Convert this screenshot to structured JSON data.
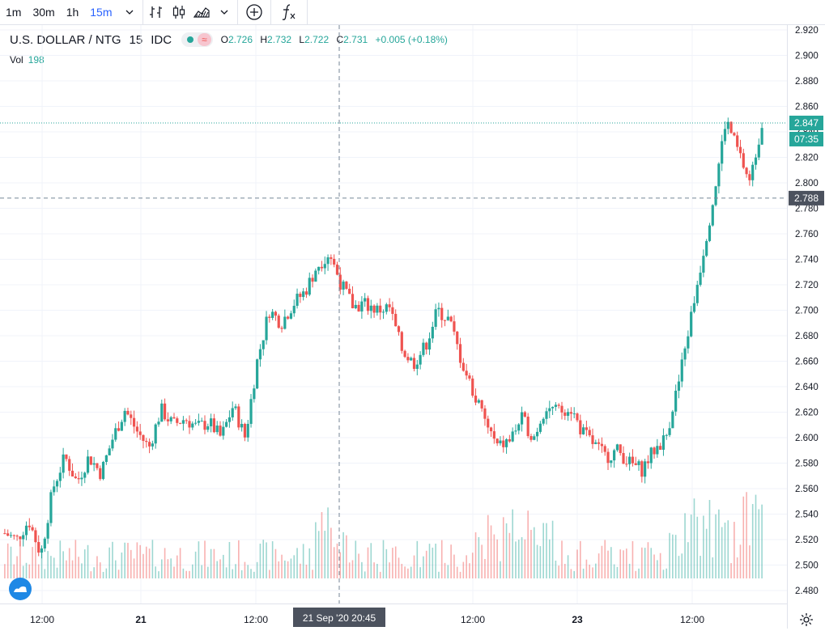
{
  "toolbar": {
    "intervals": [
      "1m",
      "30m",
      "1h",
      "15m"
    ],
    "active_interval": "15m",
    "icons": [
      "chevron-down-icon",
      "bar-chart-icon",
      "candlestick-icon",
      "area-chart-icon",
      "chevron-down-icon",
      "add-circle-icon",
      "function-icon"
    ]
  },
  "legend": {
    "symbol": "U.S. DOLLAR / NTG",
    "interval": "15",
    "exchange": "IDC",
    "open_label": "O",
    "open": "2.726",
    "high_label": "H",
    "high": "2.732",
    "low_label": "L",
    "low": "2.722",
    "close_label": "C",
    "close": "2.731",
    "change": "+0.005 (+0.18%)",
    "wave_symbol": "≈"
  },
  "volume": {
    "label": "Vol",
    "value": "198"
  },
  "colors": {
    "up": "#26a69a",
    "down": "#ef5350",
    "grid": "#f0f3fa",
    "crosshair": "#758696",
    "accent": "#2962ff"
  },
  "chart_data": {
    "type": "candlestick",
    "price_axis": {
      "min": 2.48,
      "max": 2.92,
      "step": 0.02,
      "ticks": [
        "2.920",
        "2.900",
        "2.880",
        "2.860",
        "2.840",
        "2.820",
        "2.800",
        "2.780",
        "2.760",
        "2.740",
        "2.720",
        "2.700",
        "2.680",
        "2.660",
        "2.640",
        "2.620",
        "2.600",
        "2.580",
        "2.560",
        "2.540",
        "2.520",
        "2.500",
        "2.480"
      ]
    },
    "time_axis": {
      "ticks": [
        "12:00",
        "21",
        "12:00",
        "12:00",
        "23",
        "12:00"
      ]
    },
    "last_price": {
      "value": "2.847",
      "countdown": "07:35"
    },
    "crosshair": {
      "price": "2.788",
      "time": "21 Sep '20  20:45"
    },
    "path": [
      [
        "20 Sep '20 09:00",
        2.525
      ],
      [
        "20 Sep '20 10:00",
        2.52
      ],
      [
        "20 Sep '20 11:00",
        2.535
      ],
      [
        "20 Sep '20 12:00",
        2.508
      ],
      [
        "20 Sep '20 13:00",
        2.56
      ],
      [
        "20 Sep '20 14:00",
        2.585
      ],
      [
        "20 Sep '20 15:00",
        2.565
      ],
      [
        "20 Sep '20 16:00",
        2.585
      ],
      [
        "20 Sep '20 17:00",
        2.572
      ],
      [
        "20 Sep '20 18:00",
        2.6
      ],
      [
        "20 Sep '20 19:00",
        2.622
      ],
      [
        "20 Sep '20 20:00",
        2.605
      ],
      [
        "20 Sep '20 21:00",
        2.592
      ],
      [
        "20 Sep '20 23:00",
        2.622
      ],
      [
        "21 Sep '20 01:00",
        2.61
      ],
      [
        "21 Sep '20 04:00",
        2.615
      ],
      [
        "21 Sep '20 07:00",
        2.608
      ],
      [
        "21 Sep '20 10:00",
        2.612
      ],
      [
        "21 Sep '20 12:00",
        2.6
      ],
      [
        "21 Sep '20 14:00",
        2.625
      ],
      [
        "21 Sep '20 15:00",
        2.6
      ],
      [
        "21 Sep '20 16:00",
        2.66
      ],
      [
        "21 Sep '20 17:00",
        2.7
      ],
      [
        "21 Sep '20 18:00",
        2.69
      ],
      [
        "21 Sep '20 19:00",
        2.705
      ],
      [
        "21 Sep '20 20:00",
        2.715
      ],
      [
        "21 Sep '20 21:00",
        2.735
      ],
      [
        "21 Sep '20 22:00",
        2.745
      ],
      [
        "21 Sep '20 23:00",
        2.72
      ],
      [
        "22 Sep '20 00:00",
        2.703
      ],
      [
        "22 Sep '20 02:00",
        2.705
      ],
      [
        "22 Sep '20 05:00",
        2.7
      ],
      [
        "22 Sep '20 08:00",
        2.702
      ],
      [
        "22 Sep '20 09:00",
        2.67
      ],
      [
        "22 Sep '20 10:00",
        2.658
      ],
      [
        "22 Sep '20 11:00",
        2.672
      ],
      [
        "22 Sep '20 12:00",
        2.7
      ],
      [
        "22 Sep '20 13:00",
        2.692
      ],
      [
        "22 Sep '20 14:00",
        2.66
      ],
      [
        "22 Sep '20 15:00",
        2.635
      ],
      [
        "22 Sep '20 16:00",
        2.612
      ],
      [
        "22 Sep '20 17:00",
        2.592
      ],
      [
        "22 Sep '20 18:00",
        2.598
      ],
      [
        "22 Sep '20 19:00",
        2.615
      ],
      [
        "22 Sep '20 20:00",
        2.6
      ],
      [
        "22 Sep '20 21:00",
        2.625
      ],
      [
        "22 Sep '20 22:00",
        2.62
      ],
      [
        "23 Sep '20 00:00",
        2.625
      ],
      [
        "23 Sep '20 01:00",
        2.605
      ],
      [
        "23 Sep '20 02:00",
        2.595
      ],
      [
        "23 Sep '20 03:00",
        2.585
      ],
      [
        "23 Sep '20 05:00",
        2.59
      ],
      [
        "23 Sep '20 06:00",
        2.58
      ],
      [
        "23 Sep '20 07:00",
        2.575
      ],
      [
        "23 Sep '20 08:00",
        2.59
      ],
      [
        "23 Sep '20 09:00",
        2.6
      ],
      [
        "23 Sep '20 10:00",
        2.64
      ],
      [
        "23 Sep '20 11:00",
        2.69
      ],
      [
        "23 Sep '20 12:00",
        2.74
      ],
      [
        "23 Sep '20 13:00",
        2.79
      ],
      [
        "23 Sep '20 14:00",
        2.85
      ],
      [
        "23 Sep '20 15:00",
        2.825
      ],
      [
        "23 Sep '20 16:00",
        2.8
      ],
      [
        "23 Sep '20 17:00",
        2.847
      ]
    ]
  }
}
